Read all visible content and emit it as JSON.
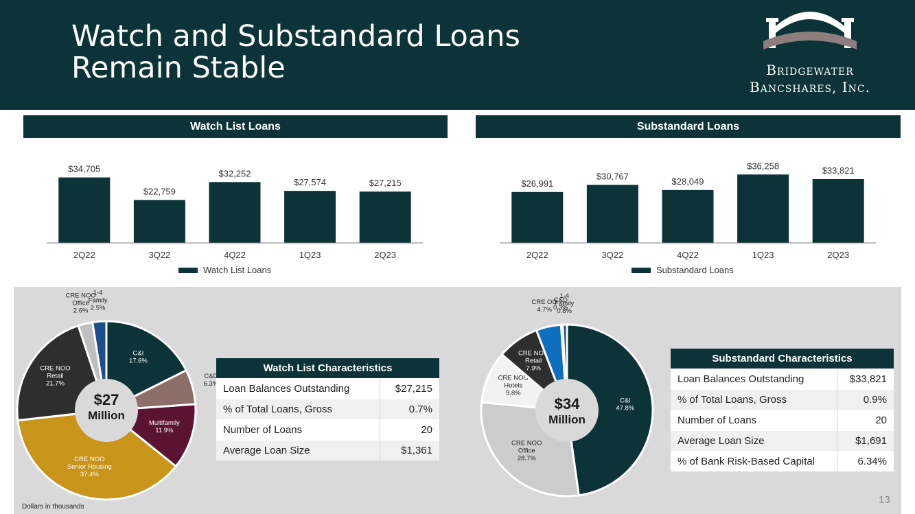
{
  "header": {
    "title_line1": "Watch and Substandard Loans",
    "title_line2": "Remain Stable",
    "logo_line1": "Bridgewater",
    "logo_line2": "Bancshares, Inc.",
    "colors": {
      "header_bg": "#0b3338",
      "logo_gray": "#8d7d7d"
    }
  },
  "chart_data": [
    {
      "type": "bar",
      "title": "Watch List Loans",
      "categories": [
        "2Q22",
        "3Q22",
        "4Q22",
        "1Q23",
        "2Q23"
      ],
      "series": [
        {
          "name": "Watch List Loans",
          "values": [
            34705,
            22759,
            32252,
            27574,
            27215
          ]
        }
      ],
      "data_labels": [
        "$34,705",
        "$22,759",
        "$32,252",
        "$27,574",
        "$27,215"
      ],
      "ylim": [
        0,
        40000
      ],
      "legend": "bottom",
      "grid": false
    },
    {
      "type": "bar",
      "title": "Substandard Loans",
      "categories": [
        "2Q22",
        "3Q22",
        "4Q22",
        "1Q23",
        "2Q23"
      ],
      "series": [
        {
          "name": "Substandard Loans",
          "values": [
            26991,
            30767,
            28049,
            36258,
            33821
          ]
        }
      ],
      "data_labels": [
        "$26,991",
        "$30,767",
        "$28,049",
        "$36,258",
        "$33,821"
      ],
      "ylim": [
        0,
        40000
      ],
      "legend": "bottom",
      "grid": false
    },
    {
      "type": "pie",
      "title": "",
      "center_label": [
        "$27",
        "Million"
      ],
      "slices": [
        {
          "label": [
            "C&I"
          ],
          "pct": "17.6%",
          "value": 17.6,
          "color": "#0b3338",
          "text_color": "#ffffff"
        },
        {
          "label": [
            "C&D"
          ],
          "pct": "6.3%",
          "value": 6.3,
          "color": "#8d6e68",
          "text_color": "#222222"
        },
        {
          "label": [
            "Multifamily"
          ],
          "pct": "11.9%",
          "value": 11.9,
          "color": "#5a1333",
          "text_color": "#ffffff"
        },
        {
          "label": [
            "CRE NOO",
            "Senior Housing"
          ],
          "pct": "37.4%",
          "value": 37.4,
          "color": "#c8941a",
          "text_color": "#ffffff"
        },
        {
          "label": [
            "CRE NOO",
            "Retail"
          ],
          "pct": "21.7%",
          "value": 21.7,
          "color": "#2e2e2e",
          "text_color": "#ffffff"
        },
        {
          "label": [
            "CRE NOO",
            "Office"
          ],
          "pct": "2.6%",
          "value": 2.6,
          "color": "#bfbfbf",
          "text_color": "#222222"
        },
        {
          "label": [
            "1-4",
            "Family"
          ],
          "pct": "2.5%",
          "value": 2.5,
          "color": "#1f4e8c",
          "text_color": "#222222"
        }
      ]
    },
    {
      "type": "pie",
      "title": "",
      "center_label": [
        "$34",
        "Million"
      ],
      "slices": [
        {
          "label": [
            "C&I"
          ],
          "pct": "47.8%",
          "value": 47.8,
          "color": "#0b3338",
          "text_color": "#ffffff"
        },
        {
          "label": [
            "CRE NOO",
            "Office"
          ],
          "pct": "28.7%",
          "value": 28.7,
          "color": "#cccccc",
          "text_color": "#222222"
        },
        {
          "label": [
            "CRE NOO",
            "Hotels"
          ],
          "pct": "9.8%",
          "value": 9.8,
          "color": "#f2f2f2",
          "text_color": "#222222"
        },
        {
          "label": [
            "CRE NOO",
            "Retail"
          ],
          "pct": "7.9%",
          "value": 7.9,
          "color": "#2e2e2e",
          "text_color": "#ffffff"
        },
        {
          "label": [
            "CRE OO"
          ],
          "pct": "4.7%",
          "value": 4.7,
          "color": "#0f6fbf",
          "text_color": "#222222"
        },
        {
          "label": [
            "C&D"
          ],
          "pct": "0.3%",
          "value": 0.3,
          "color": "#8d6e68",
          "text_color": "#222222"
        },
        {
          "label": [
            "1-4",
            "Family"
          ],
          "pct": "0.8%",
          "value": 0.8,
          "color": "#1f4e8c",
          "text_color": "#222222"
        }
      ]
    }
  ],
  "watch_table": {
    "title": "Watch List Characteristics",
    "rows": [
      {
        "label": "Loan Balances Outstanding",
        "value": "$27,215"
      },
      {
        "label": "% of Total Loans, Gross",
        "value": "0.7%"
      },
      {
        "label": "Number of Loans",
        "value": "20"
      },
      {
        "label": "Average Loan Size",
        "value": "$1,361"
      }
    ]
  },
  "sub_table": {
    "title": "Substandard Characteristics",
    "rows": [
      {
        "label": "Loan Balances Outstanding",
        "value": "$33,821"
      },
      {
        "label": "% of Total Loans, Gross",
        "value": "0.9%"
      },
      {
        "label": "Number of Loans",
        "value": "20"
      },
      {
        "label": "Average Loan Size",
        "value": "$1,691"
      },
      {
        "label": "% of Bank Risk-Based Capital",
        "value": "6.34%"
      }
    ]
  },
  "footer": {
    "note": "Dollars in thousands",
    "page_number": "13"
  }
}
